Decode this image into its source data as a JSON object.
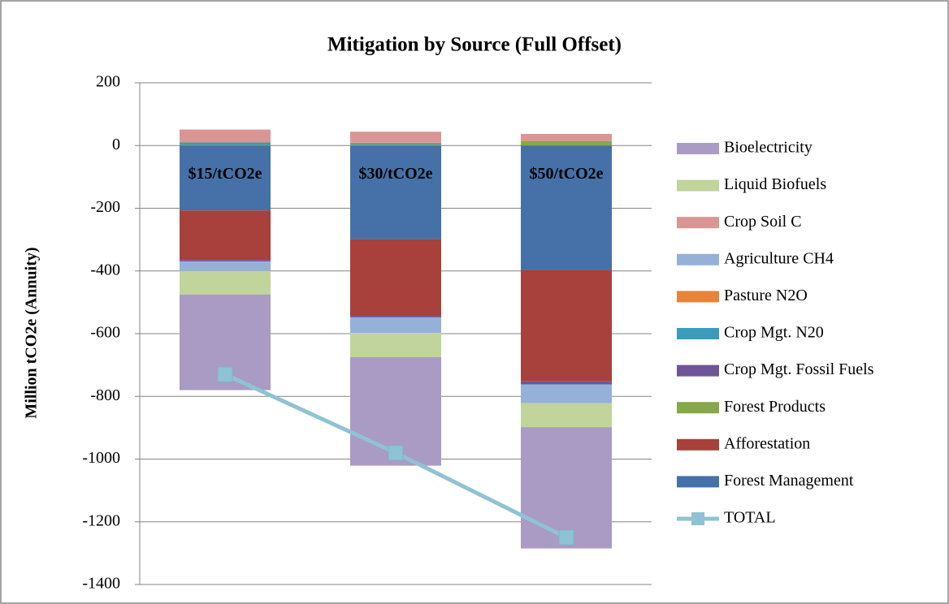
{
  "chart_data": {
    "type": "stacked_bar",
    "title": "Mitigation by Source (Full Offset)",
    "y_label": "Million tCO2e (Annuity)",
    "categories": [
      "$15/tCO2e",
      "$30/tCO2e",
      "$50/tCO2e"
    ],
    "series": [
      {
        "name": "Bioelectricity",
        "color": "#a99bc3",
        "values": [
          -305,
          -346,
          -387
        ]
      },
      {
        "name": "Liquid Biofuels",
        "color": "#c1d49c",
        "values": [
          -75,
          -77,
          -76
        ]
      },
      {
        "name": "Crop Soil C",
        "color": "#d99694",
        "values": [
          40,
          35,
          22
        ]
      },
      {
        "name": "Agriculture CH4",
        "color": "#96b1d8",
        "values": [
          -30,
          -50,
          -60
        ]
      },
      {
        "name": "Pasture N2O",
        "color": "#e8843a",
        "values": [
          1,
          1,
          1
        ]
      },
      {
        "name": "Crop Mgt. N20",
        "color": "#3b9bbb",
        "values": [
          8,
          5,
          2
        ]
      },
      {
        "name": "Crop Mgt. Fossil Fuels",
        "color": "#6f5597",
        "values": [
          -5,
          -5,
          -10
        ]
      },
      {
        "name": "Forest Products",
        "color": "#86a84b",
        "values": [
          2,
          3,
          12
        ]
      },
      {
        "name": "Afforestation",
        "color": "#a8403c",
        "values": [
          -158,
          -245,
          -355
        ]
      },
      {
        "name": "Forest Management",
        "color": "#4571a8",
        "values": [
          -207,
          -298,
          -397
        ]
      },
      {
        "name": "TOTAL",
        "type": "line",
        "color": "#8fc2d4",
        "values": [
          -730,
          -980,
          -1250
        ]
      }
    ],
    "ylim": [
      -1400,
      200
    ],
    "yticks": [
      -1400,
      -1200,
      -1000,
      -800,
      -600,
      -400,
      -200,
      0,
      200
    ],
    "grid": true,
    "legend": "right"
  }
}
